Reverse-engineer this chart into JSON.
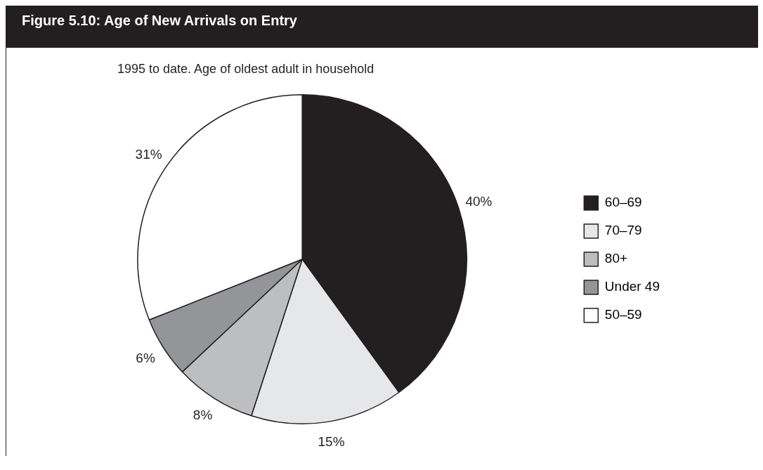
{
  "chart_data": {
    "type": "pie",
    "title": "Figure 5.10: Age of New Arrivals on Entry",
    "subtitle": "1995 to date. Age of oldest adult in household",
    "categories": [
      "60–69",
      "70–79",
      "80+",
      "Under 49",
      "50–59"
    ],
    "values": [
      40,
      15,
      8,
      6,
      31
    ],
    "colors": [
      "#231f20",
      "#e6e7e8",
      "#bcbec0",
      "#939598",
      "#ffffff"
    ],
    "value_labels": [
      "40%",
      "15%",
      "8%",
      "6%",
      "31%"
    ],
    "legend": "right"
  }
}
